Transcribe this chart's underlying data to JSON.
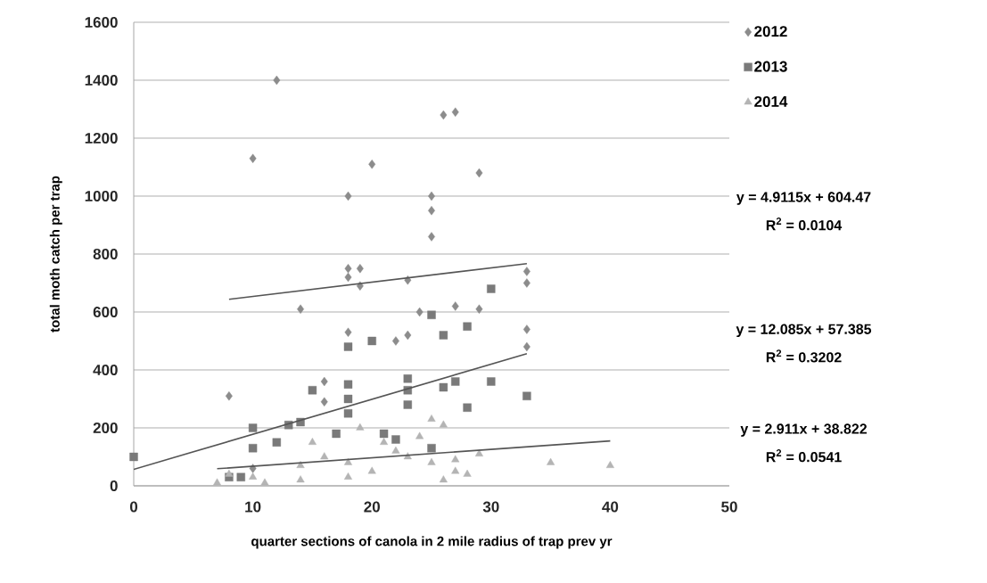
{
  "chart_data": {
    "type": "scatter",
    "xlabel": "quarter sections of canola  in 2 mile radius of trap prev yr",
    "ylabel": "total moth catch  per trap",
    "xlim": [
      0,
      50
    ],
    "xticks": [
      0,
      10,
      20,
      30,
      40,
      50
    ],
    "ylim": [
      0,
      1600
    ],
    "yticks": [
      0,
      200,
      400,
      600,
      800,
      1000,
      1200,
      1400,
      1600
    ],
    "grid": "y",
    "legend": "top right",
    "series": [
      {
        "name": "2012",
        "color": "#8c8c8c",
        "marker": "diamond",
        "x": [
          12,
          10,
          20,
          27,
          26,
          18,
          25,
          25,
          25,
          29,
          18,
          19,
          18,
          19,
          23,
          14,
          24,
          27,
          29,
          33,
          33,
          18,
          22,
          23,
          33,
          33,
          8,
          16,
          16,
          10
        ],
        "values": [
          1400,
          1130,
          1110,
          1290,
          1280,
          1000,
          1000,
          950,
          860,
          1080,
          750,
          750,
          720,
          690,
          710,
          610,
          600,
          620,
          610,
          740,
          700,
          530,
          500,
          520,
          540,
          480,
          310,
          360,
          290,
          60
        ]
      },
      {
        "name": "2013",
        "color": "#7a7a7a",
        "marker": "square",
        "x": [
          0,
          10,
          10,
          12,
          13,
          14,
          15,
          17,
          18,
          18,
          18,
          18,
          20,
          21,
          22,
          23,
          23,
          23,
          25,
          26,
          26,
          27,
          28,
          28,
          30,
          30,
          33,
          25,
          8,
          9
        ],
        "values": [
          100,
          200,
          130,
          150,
          210,
          220,
          330,
          180,
          350,
          300,
          250,
          480,
          500,
          180,
          160,
          370,
          330,
          280,
          590,
          520,
          340,
          360,
          550,
          270,
          680,
          360,
          310,
          130,
          30,
          30
        ]
      },
      {
        "name": "2014",
        "color": "#b4b4b4",
        "marker": "triangle",
        "x": [
          7,
          8,
          10,
          11,
          14,
          14,
          15,
          16,
          18,
          18,
          19,
          20,
          21,
          22,
          23,
          25,
          25,
          26,
          26,
          27,
          27,
          28,
          29,
          35,
          40,
          24
        ],
        "values": [
          10,
          40,
          30,
          10,
          20,
          70,
          150,
          100,
          80,
          30,
          200,
          50,
          150,
          120,
          100,
          230,
          80,
          210,
          20,
          90,
          50,
          40,
          110,
          80,
          70,
          170
        ]
      },
      {
        "type": "line",
        "color": "#555555",
        "marker": "none",
        "x": [
          8,
          33
        ],
        "values": [
          644,
          767
        ]
      },
      {
        "type": "line",
        "color": "#555555",
        "marker": "none",
        "x": [
          0,
          33
        ],
        "values": [
          57,
          456
        ]
      },
      {
        "type": "line",
        "color": "#555555",
        "marker": "none",
        "x": [
          7,
          40
        ],
        "values": [
          59,
          155
        ]
      }
    ],
    "annotations": [
      "y = 4.9115x + 604.47",
      "R$^{2}$ = 0.0104",
      "y = 12.085x + 57.385",
      "R$^{2}$ = 0.3202",
      "y = 2.911x + 38.822",
      "R$^{2}$ = 0.0541"
    ]
  }
}
